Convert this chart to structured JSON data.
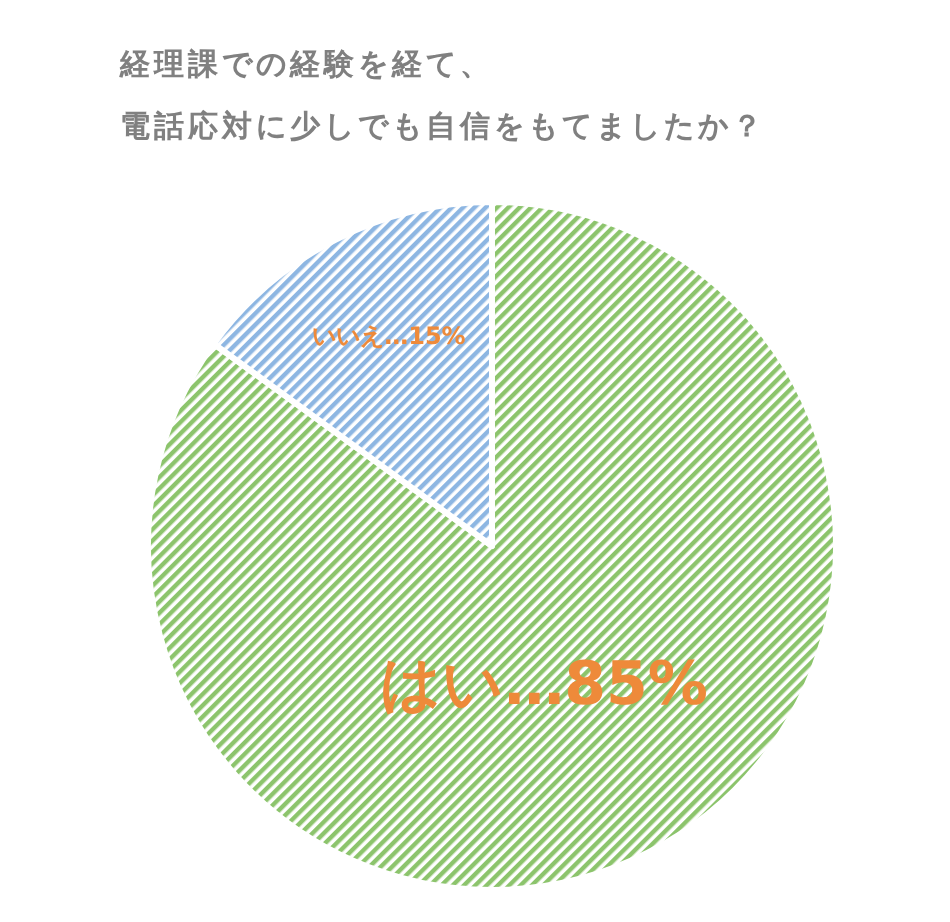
{
  "chart_data": {
    "type": "pie",
    "title": "経理課での経験を経て、",
    "subtitle": "電話応対に少しでも自信をもてましたか？",
    "categories": [
      "はい",
      "いいえ"
    ],
    "values": [
      85,
      15
    ],
    "colors": [
      "#8cc46c",
      "#8db6e2"
    ],
    "value_labels": [
      "…85%",
      "…15%"
    ]
  }
}
